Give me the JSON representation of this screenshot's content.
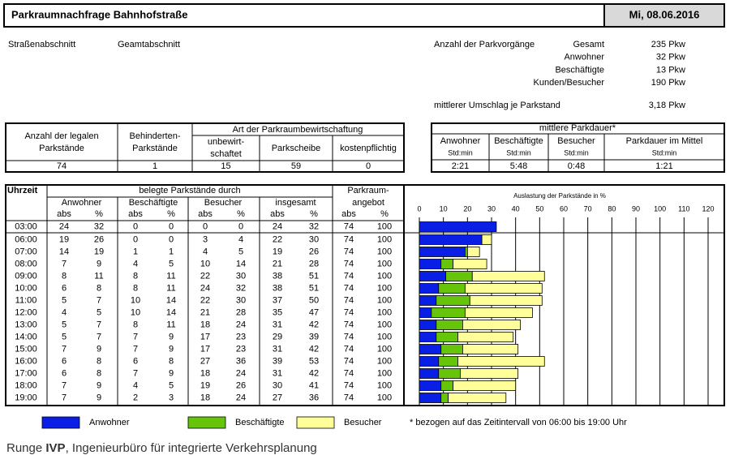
{
  "header": {
    "title": "Parkraumnachfrage Bahnhofstraße",
    "date": "Mi, 08.06.2016"
  },
  "info": {
    "section_label": "Straßenabschnitt",
    "section_name": "Geamtabschnitt",
    "count_title": "Anzahl der Parkvorgänge",
    "counts": [
      [
        "Gesamt",
        "235 Pkw"
      ],
      [
        "Anwohner",
        "32 Pkw"
      ],
      [
        "Beschäftigte",
        "13 Pkw"
      ],
      [
        "Kunden/Besucher",
        "190 Pkw"
      ]
    ],
    "turnover_label": "mittlerer Umschlag je Parkstand",
    "turnover_value": "3,18 Pkw"
  },
  "supply": {
    "group_header": "Art der Parkraumbewirtschaftung",
    "headers": [
      [
        "Anzahl der legalen",
        "Parkstände"
      ],
      [
        "Behinderten-",
        "Parkstände"
      ],
      [
        "unbewirt-",
        "schaftet"
      ],
      [
        "Parkscheibe"
      ],
      [
        "kostenpflichtig"
      ]
    ],
    "values": [
      74,
      1,
      15,
      59,
      0
    ]
  },
  "duration": {
    "title": "mittlere Parkdauer*",
    "headers": [
      "Anwohner",
      "Beschäftigte",
      "Besucher",
      "Parkdauer im Mittel"
    ],
    "units": [
      "Std:min",
      "Std:min",
      "Std:min",
      "Std:min"
    ],
    "values": [
      "2:21",
      "5:48",
      "0:48",
      "1:21"
    ]
  },
  "occupancy": {
    "time_header": "Uhrzeit",
    "group_header": "belegte Parkstände durch",
    "groups": [
      "Anwohner",
      "Beschäftigte",
      "Besucher",
      "insgesamt"
    ],
    "supply_header": [
      "Parkraum-",
      "angebot"
    ],
    "subheaders": [
      "abs",
      "%",
      "abs",
      "%",
      "abs",
      "%",
      "abs",
      "%",
      "abs",
      "%"
    ],
    "rows": [
      [
        "03:00",
        24,
        32,
        0,
        0,
        0,
        0,
        24,
        32,
        74,
        100
      ],
      [
        "06:00",
        19,
        26,
        0,
        0,
        3,
        4,
        22,
        30,
        74,
        100
      ],
      [
        "07:00",
        14,
        19,
        1,
        1,
        4,
        5,
        19,
        26,
        74,
        100
      ],
      [
        "08:00",
        7,
        9,
        4,
        5,
        10,
        14,
        21,
        28,
        74,
        100
      ],
      [
        "09:00",
        8,
        11,
        8,
        11,
        22,
        30,
        38,
        51,
        74,
        100
      ],
      [
        "10:00",
        6,
        8,
        8,
        11,
        24,
        32,
        38,
        51,
        74,
        100
      ],
      [
        "11:00",
        5,
        7,
        10,
        14,
        22,
        30,
        37,
        50,
        74,
        100
      ],
      [
        "12:00",
        4,
        5,
        10,
        14,
        21,
        28,
        35,
        47,
        74,
        100
      ],
      [
        "13:00",
        5,
        7,
        8,
        11,
        18,
        24,
        31,
        42,
        74,
        100
      ],
      [
        "14:00",
        5,
        7,
        7,
        9,
        17,
        23,
        29,
        39,
        74,
        100
      ],
      [
        "15:00",
        7,
        9,
        7,
        9,
        17,
        23,
        31,
        42,
        74,
        100
      ],
      [
        "16:00",
        6,
        8,
        6,
        8,
        27,
        36,
        39,
        53,
        74,
        100
      ],
      [
        "17:00",
        6,
        8,
        7,
        9,
        18,
        24,
        31,
        42,
        74,
        100
      ],
      [
        "18:00",
        7,
        9,
        4,
        5,
        19,
        26,
        30,
        41,
        74,
        100
      ],
      [
        "19:00",
        7,
        9,
        2,
        3,
        18,
        24,
        27,
        36,
        74,
        100
      ]
    ]
  },
  "chart": {
    "title": "Auslastung der Parkstände in %",
    "xlim": [
      0,
      120
    ],
    "xticks": [
      0,
      10,
      20,
      30,
      40,
      50,
      60,
      70,
      80,
      90,
      100,
      110,
      120
    ],
    "series": [
      {
        "name": "Anwohner",
        "color": "#0a1fe6"
      },
      {
        "name": "Beschäftigte",
        "color": "#66c40a"
      },
      {
        "name": "Besucher",
        "color": "#ffff99"
      }
    ]
  },
  "footnote": "* bezogen auf das Zeitintervall von 06:00 bis 19:00 Uhr",
  "footer": {
    "prefix": "Runge",
    "brand": "IVP",
    "suffix": ", Ingenieurbüro für integrierte Verkehrsplanung"
  }
}
